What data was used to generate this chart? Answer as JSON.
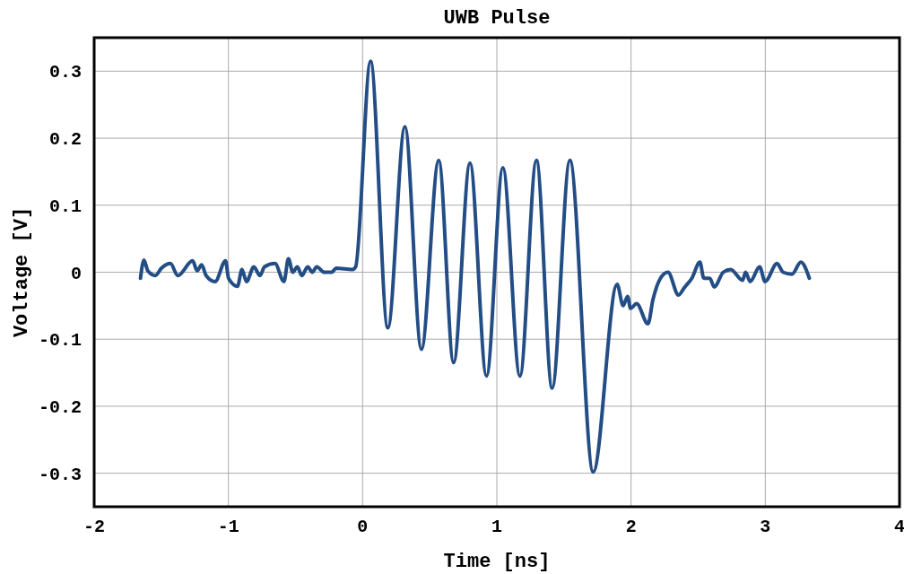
{
  "chart_data": {
    "type": "line",
    "title": "UWB Pulse",
    "xlabel": "Time [ns]",
    "ylabel": "Voltage [V]",
    "xlim": [
      -2,
      4
    ],
    "xticks": [
      -2,
      -1,
      0,
      1,
      2,
      3,
      4
    ],
    "ylim": [
      -0.35,
      0.35
    ],
    "yticks": [
      -0.3,
      -0.2,
      -0.1,
      0,
      0.1,
      0.2,
      0.3
    ],
    "grid": true,
    "marker": "none",
    "line_style": "solid",
    "series": [
      {
        "color": "#234d85",
        "x": [
          -1.655,
          -1.629,
          -1.6,
          -1.544,
          -1.499,
          -1.432,
          -1.377,
          -1.266,
          -1.233,
          -1.199,
          -1.166,
          -1.099,
          -1.021,
          -0.999,
          -0.932,
          -0.899,
          -0.865,
          -0.81,
          -0.765,
          -0.731,
          -0.653,
          -0.586,
          -0.553,
          -0.52,
          -0.486,
          -0.453,
          -0.409,
          -0.375,
          -0.342,
          -0.286,
          -0.23,
          -0.197,
          -0.075,
          -0.052,
          0.059,
          0.188,
          0.315,
          0.438,
          0.567,
          0.678,
          0.8,
          0.923,
          1.045,
          1.172,
          1.295,
          1.412,
          1.544,
          1.718,
          1.896,
          1.941,
          1.974,
          1.996,
          2.041,
          2.126,
          2.163,
          2.219,
          2.275,
          2.353,
          2.397,
          2.453,
          2.513,
          2.542,
          2.586,
          2.62,
          2.687,
          2.742,
          2.831,
          2.853,
          2.887,
          2.958,
          2.998,
          3.088,
          3.132,
          3.198,
          3.265,
          3.328
        ],
        "values": [
          -0.009,
          0.018,
          0.002,
          -0.005,
          0.006,
          0.013,
          -0.005,
          0.017,
          0.002,
          0.011,
          -0.005,
          -0.014,
          0.017,
          -0.009,
          -0.021,
          0.004,
          -0.014,
          0.008,
          -0.005,
          0.008,
          0.013,
          -0.014,
          0.02,
          0,
          0.008,
          -0.005,
          0.008,
          0,
          0.008,
          0,
          0,
          0.006,
          0.004,
          0.008,
          0.315,
          -0.083,
          0.217,
          -0.115,
          0.167,
          -0.135,
          0.163,
          -0.155,
          0.156,
          -0.155,
          0.167,
          -0.173,
          0.167,
          -0.298,
          -0.018,
          -0.05,
          -0.036,
          -0.054,
          -0.047,
          -0.077,
          -0.041,
          -0.009,
          0,
          -0.034,
          -0.023,
          -0.009,
          0.015,
          -0.009,
          -0.009,
          -0.022,
          0,
          0.004,
          -0.012,
          0,
          -0.014,
          0.008,
          -0.014,
          0.013,
          0,
          -0.003,
          0.015,
          -0.009
        ]
      }
    ]
  }
}
